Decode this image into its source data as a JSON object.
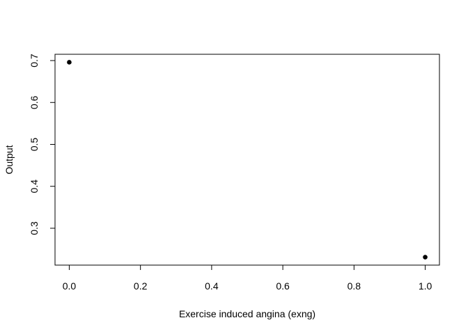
{
  "chart_data": {
    "type": "scatter",
    "title": "",
    "xlabel": "Exercise induced angina (exng)",
    "ylabel": "Output",
    "xlim": [
      -0.04,
      1.04
    ],
    "ylim": [
      0.212,
      0.715
    ],
    "xticks": [
      0.0,
      0.2,
      0.4,
      0.6,
      0.8,
      1.0
    ],
    "xtick_labels": [
      "0.0",
      "0.2",
      "0.4",
      "0.6",
      "0.8",
      "1.0"
    ],
    "yticks": [
      0.3,
      0.4,
      0.5,
      0.6,
      0.7
    ],
    "ytick_labels": [
      "0.3",
      "0.4",
      "0.5",
      "0.6",
      "0.7"
    ],
    "grid": false,
    "legend": "none",
    "point_color": "#000000",
    "series": [
      {
        "x": [
          0.0,
          1.0
        ],
        "y": [
          0.696,
          0.231
        ]
      }
    ]
  }
}
